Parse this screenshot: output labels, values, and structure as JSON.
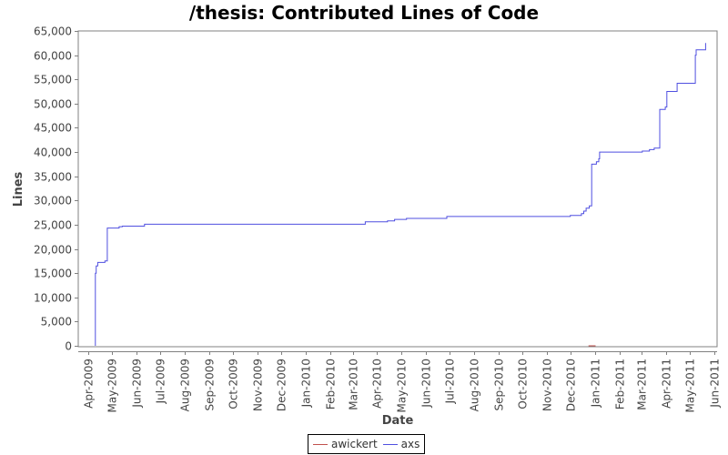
{
  "chart_data": {
    "type": "line",
    "title": "/thesis: Contributed Lines of Code",
    "xlabel": "Date",
    "ylabel": "Lines",
    "ylim": [
      0,
      65000
    ],
    "yticks": [
      0,
      5000,
      10000,
      15000,
      20000,
      25000,
      30000,
      35000,
      40000,
      45000,
      50000,
      55000,
      60000,
      65000
    ],
    "ytick_labels": [
      "0",
      "5,000",
      "10,000",
      "15,000",
      "20,000",
      "25,000",
      "30,000",
      "35,000",
      "40,000",
      "45,000",
      "50,000",
      "55,000",
      "60,000",
      "65,000"
    ],
    "xtick_labels": [
      "Apr-2009",
      "May-2009",
      "Jun-2009",
      "Jul-2009",
      "Aug-2009",
      "Sep-2009",
      "Oct-2009",
      "Nov-2009",
      "Dec-2009",
      "Jan-2010",
      "Feb-2010",
      "Mar-2010",
      "Apr-2010",
      "May-2010",
      "Jun-2010",
      "Jul-2010",
      "Aug-2010",
      "Sep-2010",
      "Oct-2010",
      "Nov-2010",
      "Dec-2010",
      "Jan-2011",
      "Feb-2011",
      "Mar-2011",
      "Apr-2011",
      "May-2011",
      "Jun-2011"
    ],
    "grid": false,
    "legend_position": "bottom",
    "series": [
      {
        "name": "awickert",
        "color": "#c0504d",
        "step": true,
        "points": [
          [
            "2010-12-24",
            0
          ],
          [
            "2011-01-02",
            0
          ]
        ]
      },
      {
        "name": "axs",
        "color": "#4f4fe0",
        "step": true,
        "points": [
          [
            "2009-04-10",
            0
          ],
          [
            "2009-04-10",
            15000
          ],
          [
            "2009-04-11",
            16500
          ],
          [
            "2009-04-13",
            17200
          ],
          [
            "2009-04-22",
            17500
          ],
          [
            "2009-04-25",
            24300
          ],
          [
            "2009-05-10",
            24600
          ],
          [
            "2009-05-14",
            24700
          ],
          [
            "2009-06-11",
            25100
          ],
          [
            "2010-03-17",
            25600
          ],
          [
            "2010-04-14",
            25800
          ],
          [
            "2010-04-23",
            26100
          ],
          [
            "2010-05-08",
            26300
          ],
          [
            "2010-06-28",
            26700
          ],
          [
            "2010-12-01",
            26900
          ],
          [
            "2010-12-15",
            27300
          ],
          [
            "2010-12-18",
            27800
          ],
          [
            "2010-12-21",
            28400
          ],
          [
            "2010-12-25",
            28900
          ],
          [
            "2010-12-28",
            37500
          ],
          [
            "2011-01-03",
            38000
          ],
          [
            "2011-01-06",
            38600
          ],
          [
            "2011-01-07",
            40000
          ],
          [
            "2011-03-02",
            40200
          ],
          [
            "2011-03-11",
            40500
          ],
          [
            "2011-03-17",
            40800
          ],
          [
            "2011-03-24",
            48800
          ],
          [
            "2011-03-31",
            49300
          ],
          [
            "2011-04-02",
            52500
          ],
          [
            "2011-04-15",
            54200
          ],
          [
            "2011-05-08",
            60000
          ],
          [
            "2011-05-09",
            61100
          ],
          [
            "2011-05-21",
            61100
          ],
          [
            "2011-05-21",
            62500
          ]
        ]
      }
    ]
  },
  "legend": {
    "items": [
      {
        "label": "awickert",
        "color": "#c0504d"
      },
      {
        "label": "axs",
        "color": "#4f4fe0"
      }
    ]
  }
}
